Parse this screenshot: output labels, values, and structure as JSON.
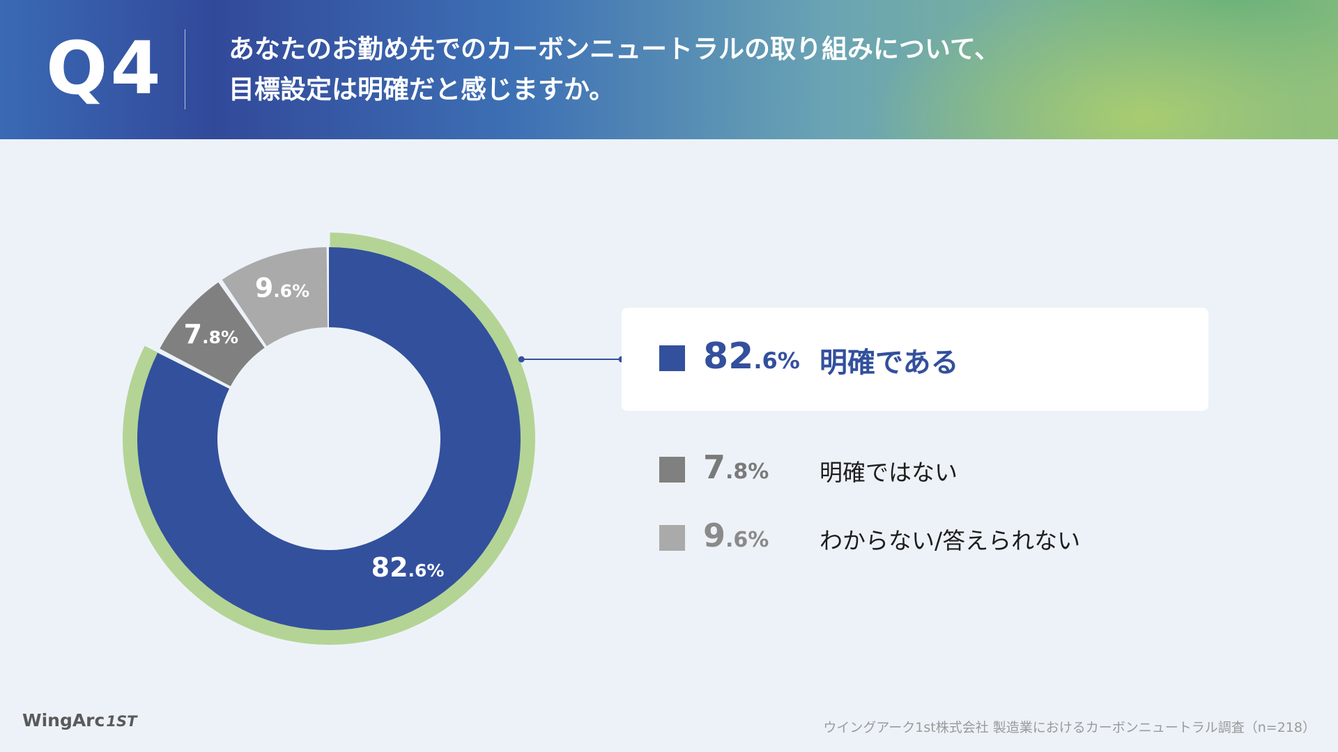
{
  "header": {
    "question_number": "Q4",
    "question_line1": "あなたのお勤め先でのカーボンニュートラルの取り組みについて、",
    "question_line2": "目標設定は明確だと感じますか。"
  },
  "colors": {
    "accent_blue": "#33509d",
    "gray_dark": "#808080",
    "gray_light": "#aaaaaa",
    "ring_green": "#b4d495",
    "background": "#edf2f8"
  },
  "chart_data": {
    "type": "pie",
    "variant": "donut",
    "title": "",
    "unit": "%",
    "highlighted": "明確である",
    "series": [
      {
        "label": "明確である",
        "value": 82.6,
        "display_int": "82",
        "display_dec": ".6%",
        "color": "#33509d"
      },
      {
        "label": "明確ではない",
        "value": 7.8,
        "display_int": "7",
        "display_dec": ".8%",
        "color": "#808080"
      },
      {
        "label": "わからない/答えられない",
        "value": 9.6,
        "display_int": "9",
        "display_dec": ".6%",
        "color": "#aaaaaa"
      }
    ]
  },
  "legend": [
    {
      "pct_int": "82",
      "pct_dec": ".6%",
      "label": "明確である"
    },
    {
      "pct_int": "7",
      "pct_dec": ".8%",
      "label": "明確ではない"
    },
    {
      "pct_int": "9",
      "pct_dec": ".6%",
      "label": "わからない/答えられない"
    }
  ],
  "footer": {
    "logo_text": "WingArc",
    "logo_mark": "1ST",
    "source": "ウイングアーク1st株式会社 製造業におけるカーボンニュートラル調査（n=218）"
  }
}
